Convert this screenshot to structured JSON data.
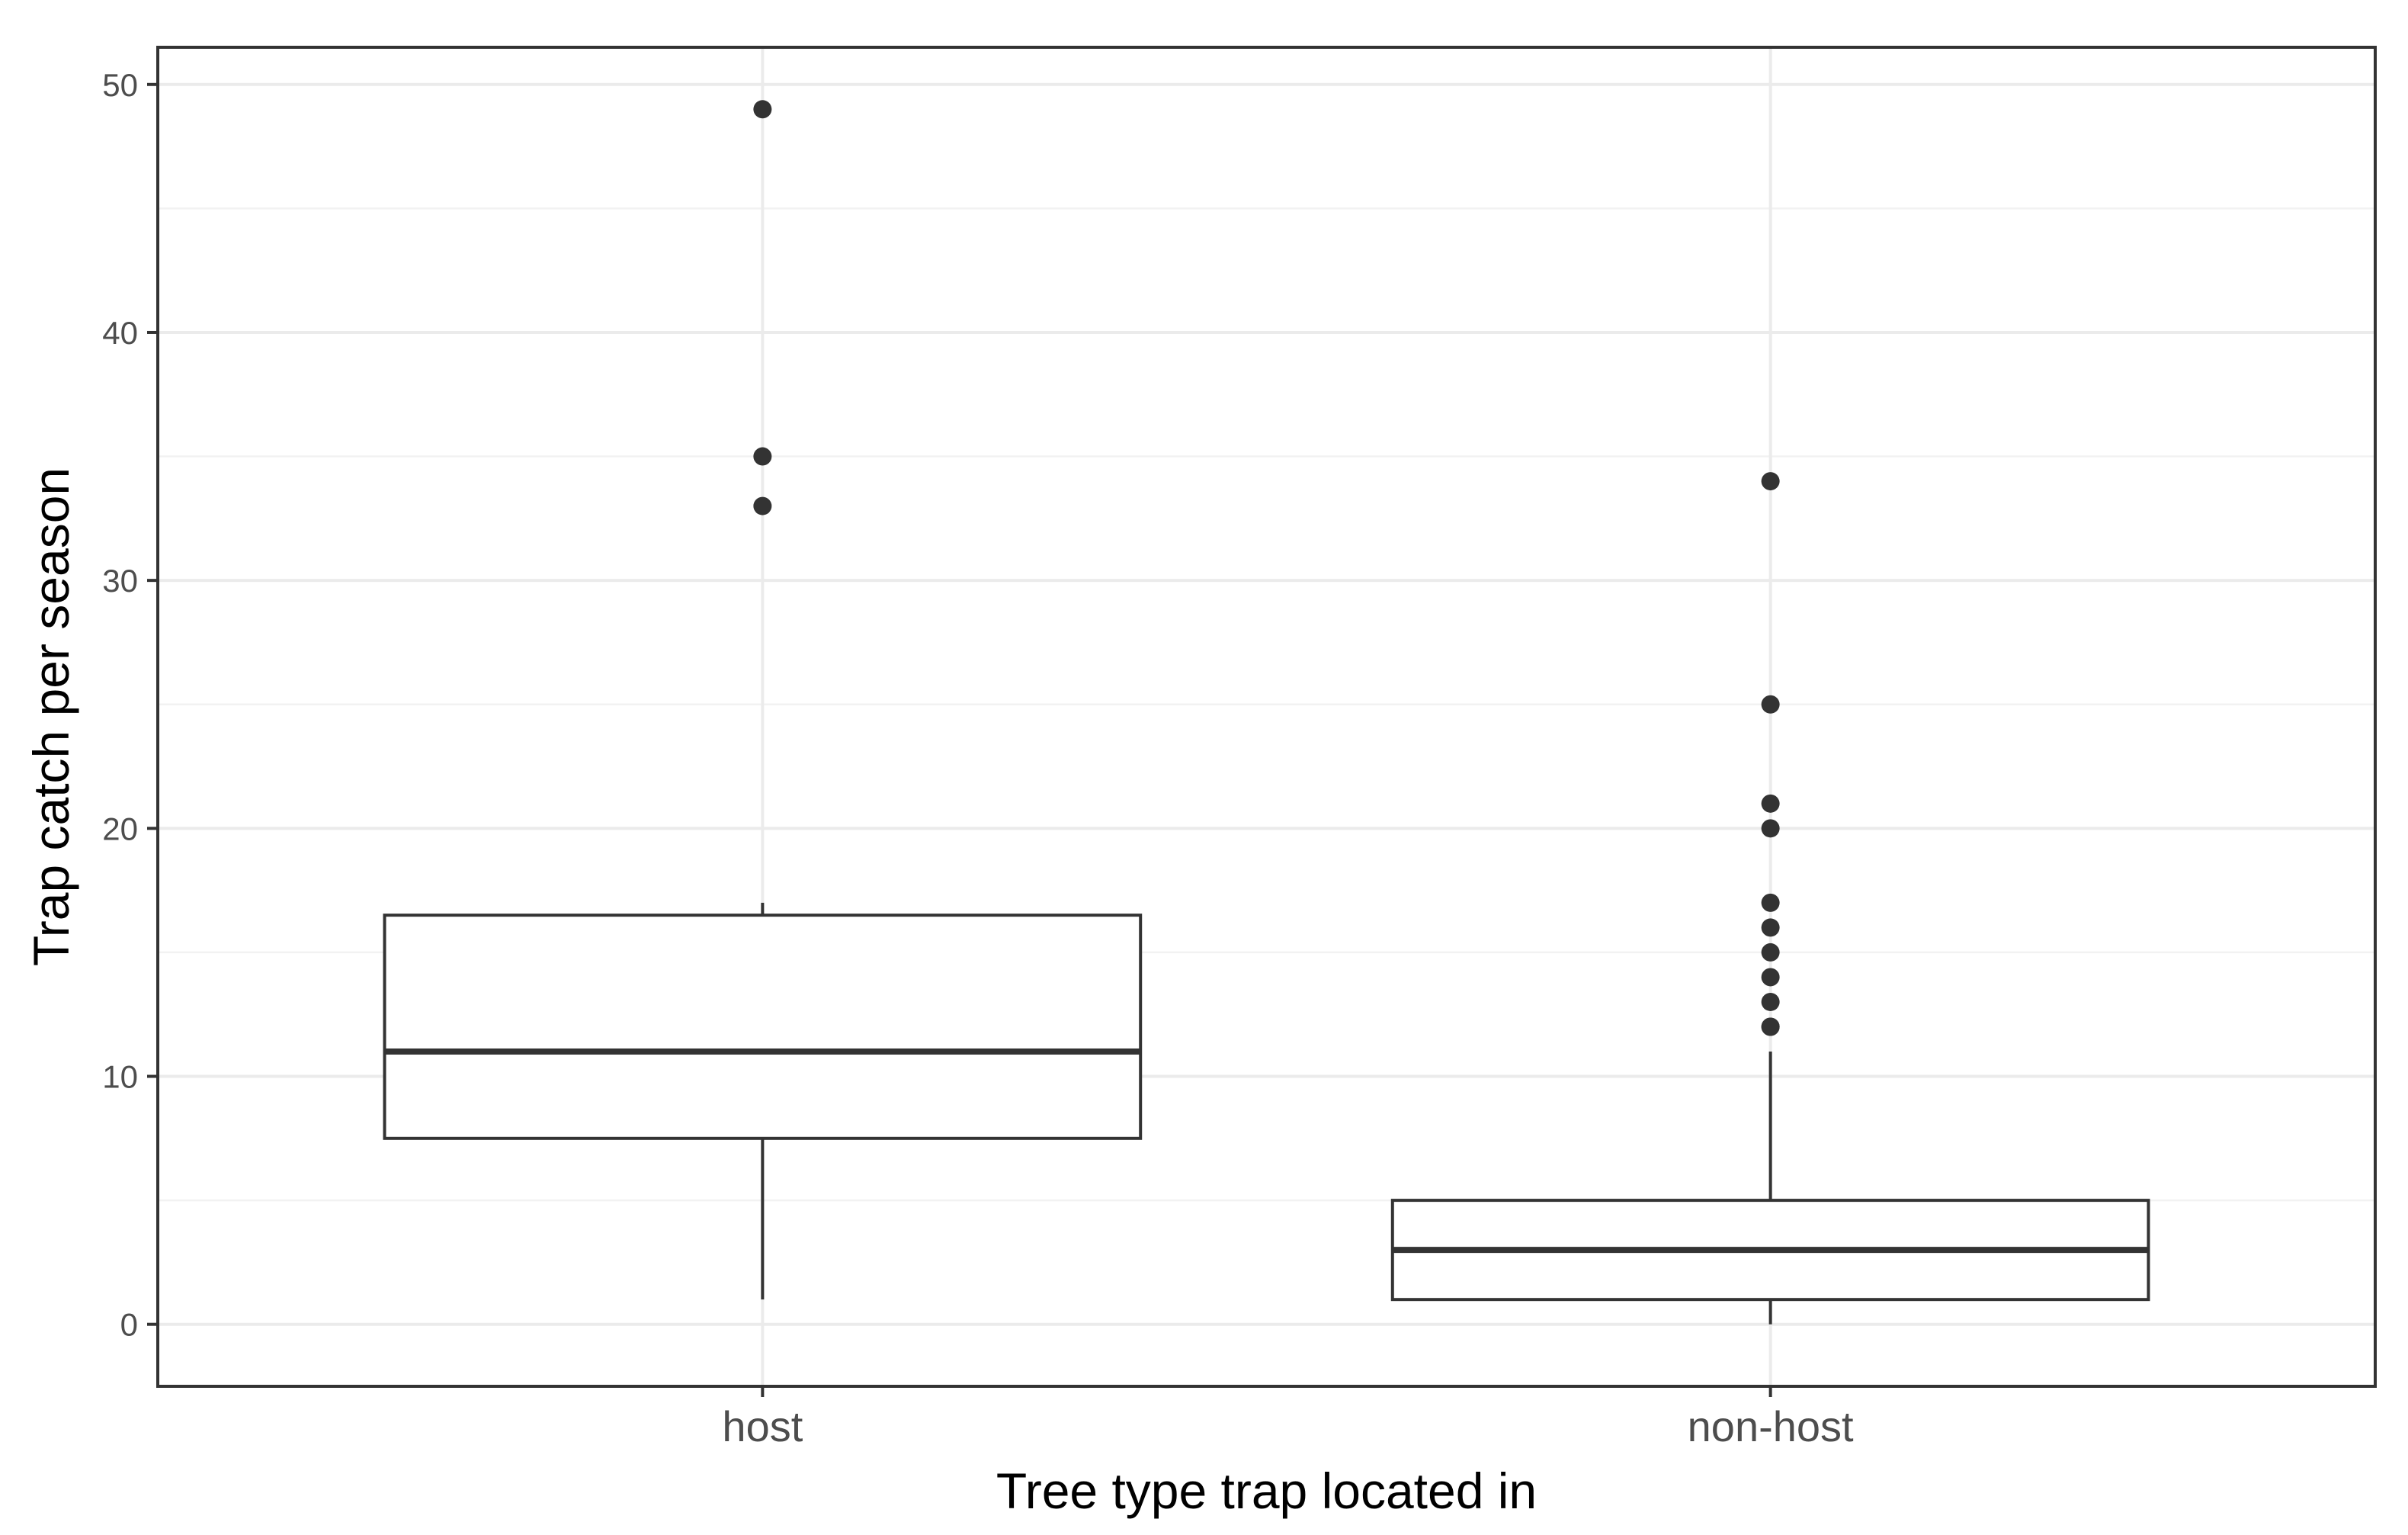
{
  "chart_data": {
    "type": "boxplot",
    "xlabel": "Tree type trap located in",
    "ylabel": "Trap catch per season",
    "categories": [
      "host",
      "non-host"
    ],
    "ylim": [
      -2.5,
      51.5
    ],
    "yticks": [
      0,
      10,
      20,
      30,
      40,
      50
    ],
    "grid": true,
    "boxes": [
      {
        "category": "host",
        "whisker_low": 1,
        "q1": 7.5,
        "median": 11,
        "q3": 16.5,
        "whisker_high": 17,
        "outliers": [
          33,
          35,
          49
        ]
      },
      {
        "category": "non-host",
        "whisker_low": 0,
        "q1": 1,
        "median": 3,
        "q3": 5,
        "whisker_high": 11,
        "outliers": [
          12,
          12,
          13,
          14,
          15,
          16,
          17,
          20,
          21,
          25,
          34
        ]
      }
    ]
  },
  "colors": {
    "panel_border": "#333333",
    "grid_major": "#ebebeb",
    "grid_minor": "#f2f2f2",
    "box_stroke": "#333333",
    "outlier": "#333333",
    "box_fill": "#ffffff"
  }
}
